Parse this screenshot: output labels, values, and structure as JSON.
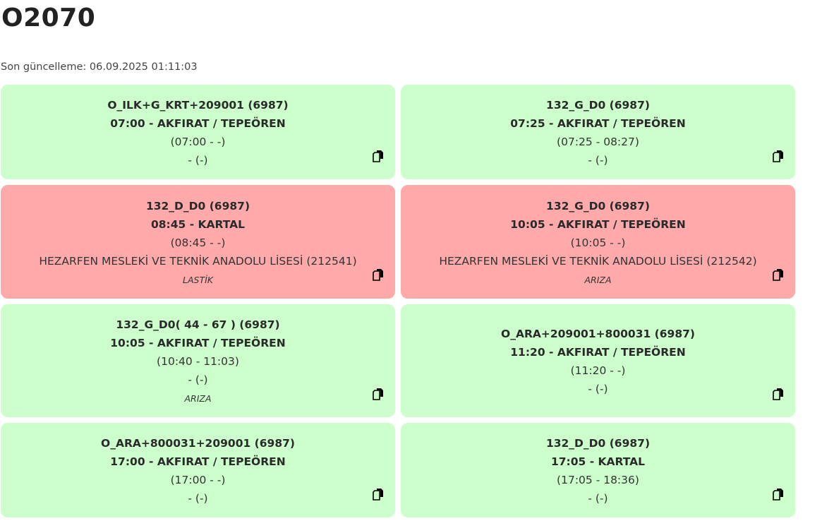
{
  "page": {
    "title": "O2070",
    "last_update": "Son güncelleme: 06.09.2025 01:11:03"
  },
  "colors": {
    "ok_card": "#ccffcc",
    "fault_card": "#ffaaaa"
  },
  "cards": [
    {
      "status": "ok",
      "route": "O_ILK+G_KRT+209001 (6987)",
      "departure": "07:00 - AKFIRAT / TEPEÖREN",
      "times": "(07:00 - -)",
      "detail": "- (-)",
      "note": "",
      "icon": "copy-icon"
    },
    {
      "status": "ok",
      "route": "132_G_D0 (6987)",
      "departure": "07:25 - AKFIRAT / TEPEÖREN",
      "times": "(07:25 - 08:27)",
      "detail": "- (-)",
      "note": "",
      "icon": "copy-icon"
    },
    {
      "status": "fault",
      "route": "132_D_D0 (6987)",
      "departure": "08:45 - KARTAL",
      "times": "(08:45 - -)",
      "detail": "HEZARFEN MESLEKİ VE TEKNİK ANADOLU LİSESİ (212541)",
      "note": "LASTİK",
      "icon": "copy-icon"
    },
    {
      "status": "fault",
      "route": "132_G_D0 (6987)",
      "departure": "10:05 - AKFIRAT / TEPEÖREN",
      "times": "(10:05 - -)",
      "detail": "HEZARFEN MESLEKİ VE TEKNİK ANADOLU LİSESİ (212542)",
      "note": "ARIZA",
      "icon": "copy-icon"
    },
    {
      "status": "ok",
      "route": "132_G_D0( 44 - 67 ) (6987)",
      "departure": "10:05 - AKFIRAT / TEPEÖREN",
      "times": "(10:40 - 11:03)",
      "detail": "- (-)",
      "note": "ARIZA",
      "icon": "copy-icon"
    },
    {
      "status": "ok",
      "route": "O_ARA+209001+800031 (6987)",
      "departure": "11:20 - AKFIRAT / TEPEÖREN",
      "times": "(11:20 - -)",
      "detail": "- (-)",
      "note": "",
      "icon": "copy-icon"
    },
    {
      "status": "ok",
      "route": "O_ARA+800031+209001 (6987)",
      "departure": "17:00 - AKFIRAT / TEPEÖREN",
      "times": "(17:00 - -)",
      "detail": "- (-)",
      "note": "",
      "icon": "copy-icon"
    },
    {
      "status": "ok",
      "route": "132_D_D0 (6987)",
      "departure": "17:05 - KARTAL",
      "times": "(17:05 - 18:36)",
      "detail": "- (-)",
      "note": "",
      "icon": "copy-icon"
    }
  ]
}
